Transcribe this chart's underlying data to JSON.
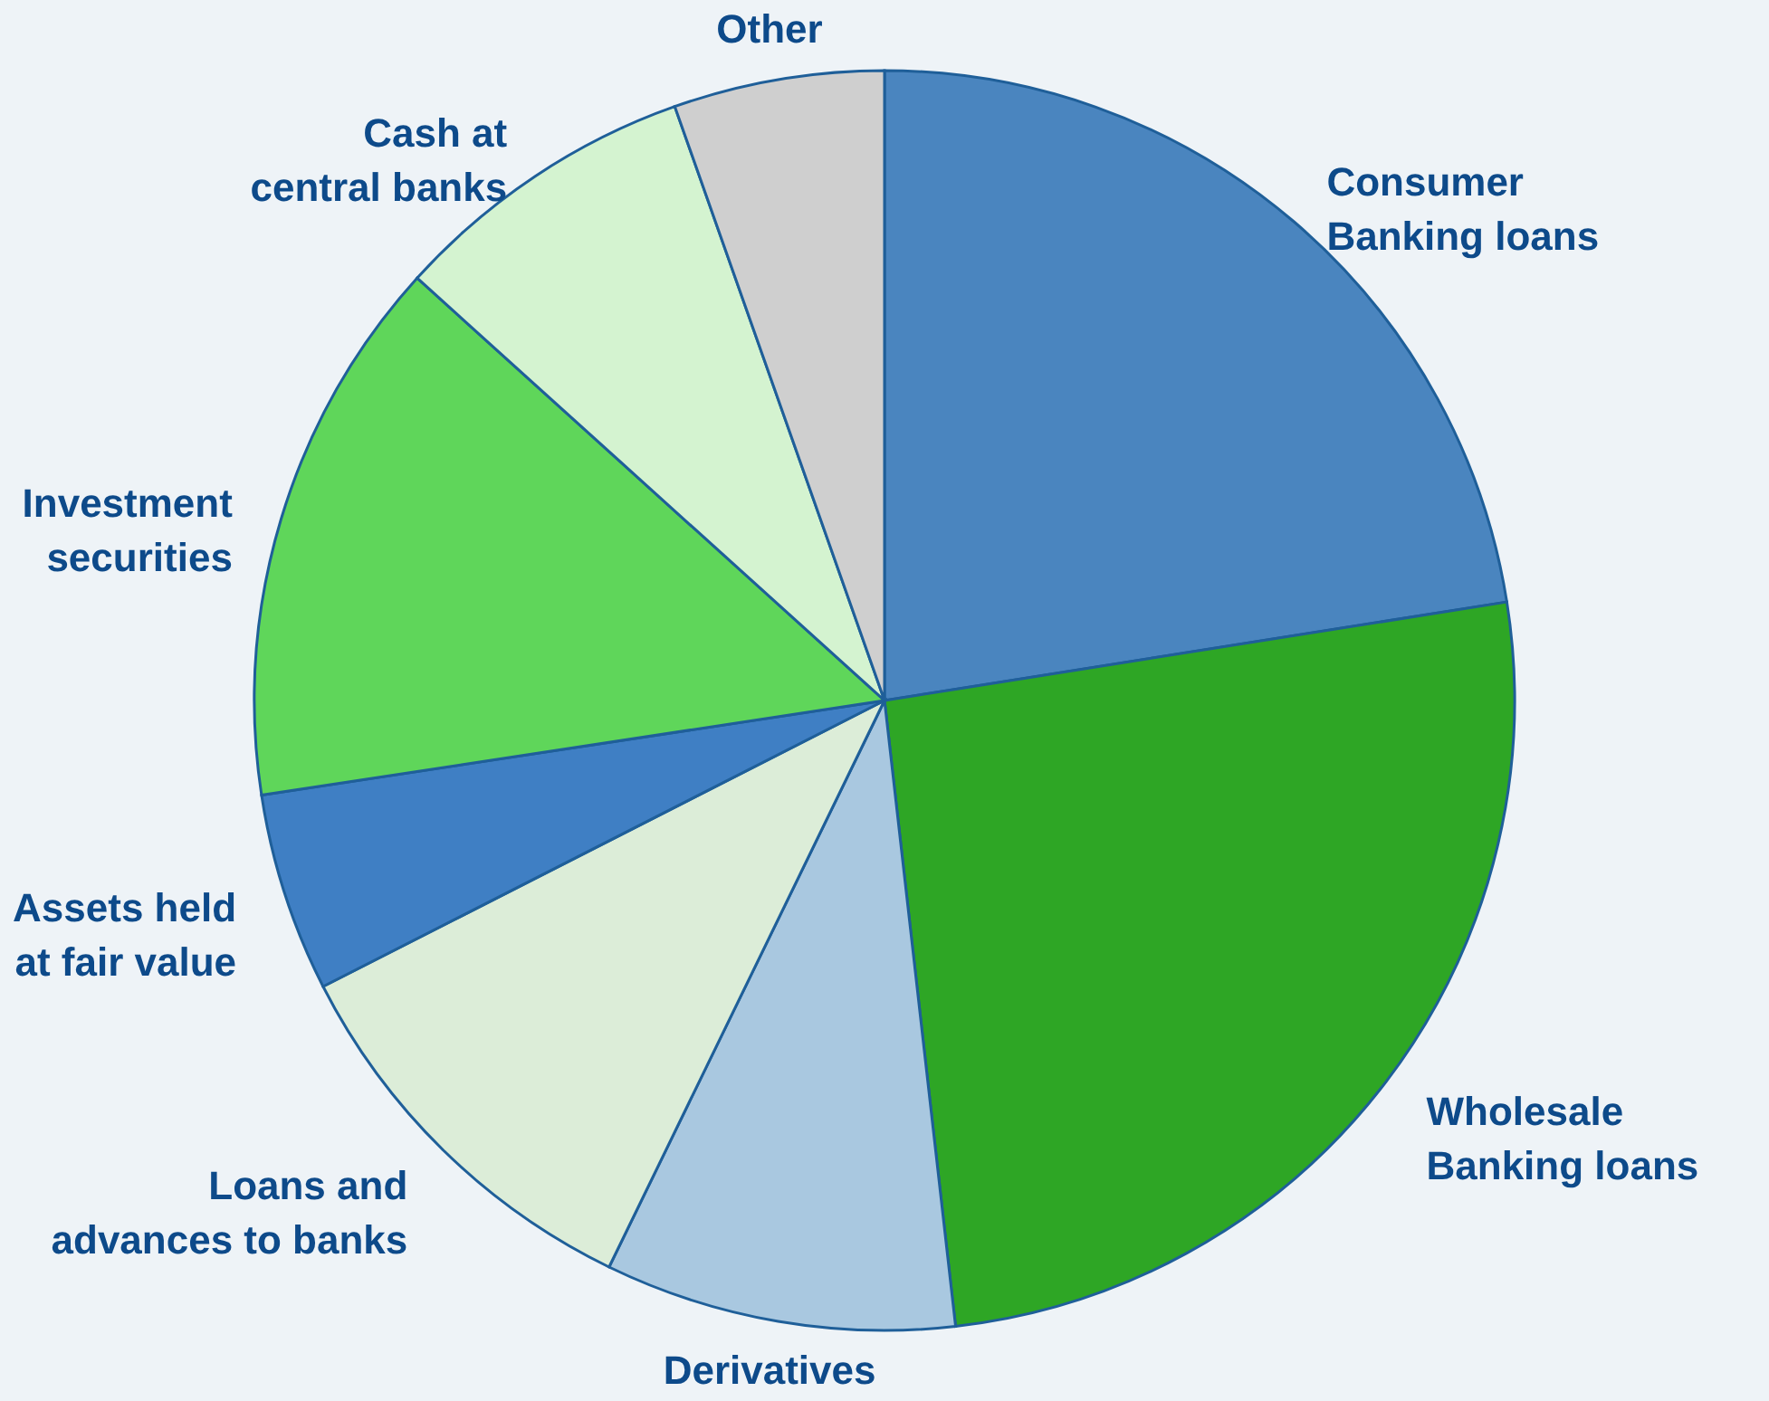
{
  "chart_data": {
    "type": "pie",
    "categories": [
      "Consumer\nBanking loans",
      "Wholesale\nBanking loans",
      "Derivatives",
      "Loans and\nadvances to banks",
      "Assets held\nat fair value",
      "Investment\nsecurities",
      "Cash at\ncentral banks",
      "Other"
    ],
    "values": [
      22.5,
      25.7,
      9.0,
      10.3,
      5.1,
      14.1,
      7.9,
      5.4
    ],
    "colors": [
      "#4a85bf",
      "#2ea625",
      "#a9c8e0",
      "#dcedd8",
      "#3f7fc4",
      "#5fd65a",
      "#d4f3d0",
      "#cfcfcf"
    ]
  }
}
